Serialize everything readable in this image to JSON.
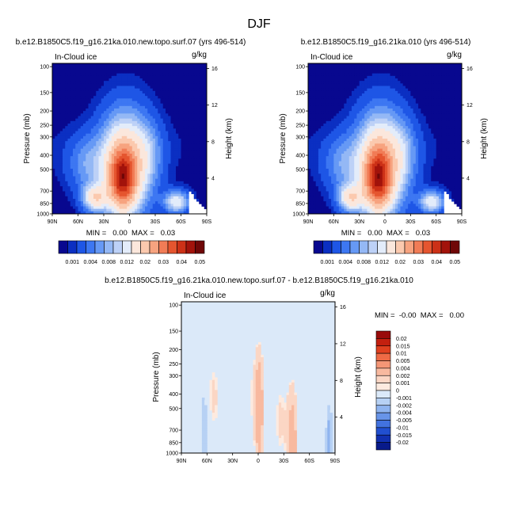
{
  "figure": {
    "title": "DJF"
  },
  "colors": {
    "background": "#ffffff",
    "axis": "#000000"
  },
  "chart_data": [
    {
      "id": "panel-new-topo",
      "type": "heatmap",
      "title": "b.e12.B1850C5.f19_g16.21ka.010.new.topo.surf.07 (yrs 496-514)",
      "left_label": "In-Cloud ice",
      "right_label": "g/kg",
      "ylabel": "Pressure (mb)",
      "y2label": "Height (km)",
      "xticks": [
        "90N",
        "60N",
        "30N",
        "0",
        "30S",
        "60S",
        "90S"
      ],
      "yticks": [
        "100",
        "150",
        "200",
        "250",
        "300",
        "400",
        "500",
        "700",
        "850",
        "1000"
      ],
      "y2ticks": [
        "16",
        "12",
        "8",
        "4"
      ],
      "xlim": [
        90,
        -90
      ],
      "ylim": [
        100,
        1000
      ],
      "yscale": "log",
      "stats": "MIN =   0.00  MAX =   0.03",
      "colorbar": {
        "orientation": "horizontal",
        "labels": [
          "0.001",
          "0.004",
          "0.008",
          "0.012",
          "0.02",
          "0.03",
          "0.04",
          "0.05"
        ],
        "colors": [
          "#08088f",
          "#0b2fc2",
          "#1e56e6",
          "#3d77f2",
          "#6699f5",
          "#94b8f5",
          "#bdd1f7",
          "#e3ecfa",
          "#fbe7dc",
          "#fbc9ae",
          "#f7a37f",
          "#f17c56",
          "#e5552f",
          "#cc3117",
          "#a2130b",
          "#6f0707"
        ]
      },
      "field": {
        "max": 0.03,
        "features": [
          {
            "name": "tropical tower",
            "lat": 5,
            "p": 470,
            "lat_width": 20,
            "p_width": 0.55,
            "value": 0.023
          },
          {
            "name": "tropical core",
            "lat": 8,
            "p": 580,
            "lat_width": 10,
            "p_width": 0.3,
            "value": 0.028
          },
          {
            "name": "NH midlatitude low",
            "lat": 40,
            "p": 780,
            "lat_width": 10,
            "p_width": 0.14,
            "value": 0.016
          },
          {
            "name": "NH midlatitude shelf",
            "lat": 50,
            "p": 460,
            "lat_width": 16,
            "p_width": 0.3,
            "value": 0.006
          },
          {
            "name": "SH midlatitude low",
            "lat": -55,
            "p": 830,
            "lat_width": 10,
            "p_width": 0.12,
            "value": 0.014
          },
          {
            "name": "SH subtropics",
            "lat": -22,
            "p": 380,
            "lat_width": 12,
            "p_width": 0.32,
            "value": 0.004
          }
        ]
      }
    },
    {
      "id": "panel-control",
      "type": "heatmap",
      "title": "b.e12.B1850C5.f19_g16.21ka.010 (yrs 496-514)",
      "left_label": "In-Cloud ice",
      "right_label": "g/kg",
      "ylabel": "Pressure (mb)",
      "y2label": "Height (km)",
      "xticks": [
        "90N",
        "60N",
        "30N",
        "0",
        "30S",
        "60S",
        "90S"
      ],
      "yticks": [
        "100",
        "150",
        "200",
        "250",
        "300",
        "400",
        "500",
        "700",
        "850",
        "1000"
      ],
      "y2ticks": [
        "16",
        "12",
        "8",
        "4"
      ],
      "xlim": [
        90,
        -90
      ],
      "ylim": [
        100,
        1000
      ],
      "yscale": "log",
      "stats": "MIN =   0.00  MAX =   0.03",
      "colorbar": {
        "orientation": "horizontal",
        "labels": [
          "0.001",
          "0.004",
          "0.008",
          "0.012",
          "0.02",
          "0.03",
          "0.04",
          "0.05"
        ],
        "colors": [
          "#08088f",
          "#0b2fc2",
          "#1e56e6",
          "#3d77f2",
          "#6699f5",
          "#94b8f5",
          "#bdd1f7",
          "#e3ecfa",
          "#fbe7dc",
          "#fbc9ae",
          "#f7a37f",
          "#f17c56",
          "#e5552f",
          "#cc3117",
          "#a2130b",
          "#6f0707"
        ]
      },
      "field": {
        "max": 0.03,
        "features": [
          {
            "name": "tropical tower",
            "lat": 5,
            "p": 470,
            "lat_width": 20,
            "p_width": 0.55,
            "value": 0.023
          },
          {
            "name": "tropical core",
            "lat": 8,
            "p": 580,
            "lat_width": 10,
            "p_width": 0.3,
            "value": 0.028
          },
          {
            "name": "NH midlatitude low",
            "lat": 40,
            "p": 780,
            "lat_width": 10,
            "p_width": 0.14,
            "value": 0.016
          },
          {
            "name": "NH midlatitude shelf",
            "lat": 50,
            "p": 460,
            "lat_width": 16,
            "p_width": 0.3,
            "value": 0.006
          },
          {
            "name": "SH midlatitude low",
            "lat": -55,
            "p": 830,
            "lat_width": 10,
            "p_width": 0.12,
            "value": 0.014
          },
          {
            "name": "SH subtropics",
            "lat": -22,
            "p": 380,
            "lat_width": 12,
            "p_width": 0.32,
            "value": 0.004
          }
        ]
      }
    },
    {
      "id": "panel-difference",
      "type": "heatmap",
      "title": "b.e12.B1850C5.f19_g16.21ka.010.new.topo.surf.07 - b.e12.B1850C5.f19_g16.21ka.010",
      "left_label": "In-Cloud ice",
      "right_label": "g/kg",
      "ylabel": "Pressure (mb)",
      "y2label": "Height (km)",
      "xticks": [
        "90N",
        "60N",
        "30N",
        "0",
        "30S",
        "60S",
        "90S"
      ],
      "yticks": [
        "100",
        "150",
        "200",
        "250",
        "300",
        "400",
        "500",
        "700",
        "850",
        "1000"
      ],
      "y2ticks": [
        "16",
        "12",
        "8",
        "4"
      ],
      "xlim": [
        90,
        -90
      ],
      "ylim": [
        100,
        1000
      ],
      "yscale": "log",
      "stats": "MIN =  -0.00  MAX =   0.00",
      "colorbar": {
        "orientation": "vertical",
        "labels": [
          "0.02",
          "0.015",
          "0.01",
          "0.005",
          "0.004",
          "0.002",
          "0.001",
          "0",
          "-0.001",
          "-0.002",
          "-0.004",
          "-0.005",
          "-0.01",
          "-0.015",
          "-0.02"
        ],
        "colors": [
          "#990b0b",
          "#c4200f",
          "#e0401f",
          "#ef6a45",
          "#f49676",
          "#f8b99f",
          "#fbd6c4",
          "#fdeadf",
          "#dbe9f9",
          "#b7d1f4",
          "#8fb4ef",
          "#6894e8",
          "#4272df",
          "#214fd0",
          "#1130b0",
          "#081a8a"
        ]
      },
      "field": {
        "features": [
          {
            "name": "NH positive column",
            "lat": 53,
            "p": 420,
            "lat_width": 9,
            "value": 0.0011
          },
          {
            "name": "tropical positive column",
            "lat": 3,
            "p": 420,
            "lat_width": 8,
            "value": 0.0011
          },
          {
            "name": "SH positive column",
            "lat": -26,
            "p": 600,
            "lat_width": 7,
            "value": 0.0011
          },
          {
            "name": "polar positive column",
            "lat": -82,
            "p": 300,
            "lat_width": 6,
            "value": 0.0011
          },
          {
            "name": "tropical positive spot",
            "lat": -1,
            "p": 520,
            "lat_width": 3,
            "value": 0.003
          },
          {
            "name": "SH low positive spot",
            "lat": -40,
            "p": 850,
            "lat_width": 4,
            "value": 0.003
          },
          {
            "name": "NH negative spot",
            "lat": 63,
            "p": 720,
            "lat_width": 3,
            "value": -0.0025
          },
          {
            "name": "SH negative spot",
            "lat": -83,
            "p": 840,
            "lat_width": 3,
            "value": -0.003
          }
        ]
      }
    }
  ]
}
